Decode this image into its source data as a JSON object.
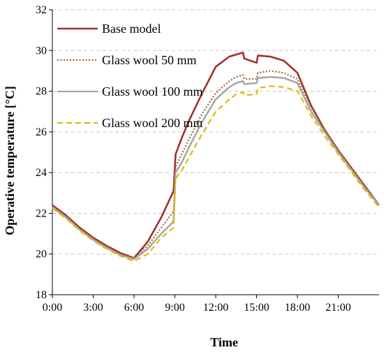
{
  "chart_data": {
    "type": "line",
    "xlabel": "Time",
    "ylabel": "Operative temperature [°C]",
    "xlim": [
      0,
      24
    ],
    "ylim": [
      18,
      32
    ],
    "xticks": [
      0,
      3,
      6,
      9,
      12,
      15,
      18,
      21
    ],
    "xtick_labels": [
      "0:00",
      "3:00",
      "6:00",
      "9:00",
      "12:00",
      "15:00",
      "18:00",
      "21:00"
    ],
    "yticks": [
      18,
      20,
      22,
      24,
      26,
      28,
      30,
      32
    ],
    "ytick_labels": [
      "18",
      "20",
      "22",
      "24",
      "26",
      "28",
      "30",
      "32"
    ],
    "grid": "horizontal dashed",
    "legend": "top-left",
    "series": [
      {
        "name": "Base model",
        "color": "#a0302a",
        "dash": "solid",
        "x": [
          0,
          1,
          2,
          3,
          4,
          5,
          6,
          7,
          8,
          8.9,
          9.05,
          9.5,
          10,
          11,
          12,
          13,
          13.5,
          14,
          14.1,
          15,
          15.1,
          16,
          17,
          18,
          19,
          20,
          21,
          22,
          23,
          24
        ],
        "y": [
          22.4,
          21.9,
          21.3,
          20.8,
          20.4,
          20.05,
          19.8,
          20.6,
          21.8,
          23.1,
          24.9,
          25.7,
          26.5,
          27.9,
          29.2,
          29.7,
          29.8,
          29.9,
          29.6,
          29.4,
          29.75,
          29.7,
          29.5,
          28.9,
          27.3,
          26.1,
          25.1,
          24.2,
          23.3,
          22.4
        ]
      },
      {
        "name": "Glass wool 50 mm",
        "color": "#9b6b34",
        "dash": "dotted",
        "x": [
          0,
          1,
          2,
          3,
          4,
          5,
          6,
          7,
          8,
          8.9,
          9.05,
          9.5,
          10,
          11,
          12,
          13,
          13.5,
          14,
          14.1,
          15,
          15.1,
          16,
          17,
          18,
          19,
          20,
          21,
          22,
          23,
          24
        ],
        "y": [
          22.35,
          21.85,
          21.25,
          20.75,
          20.35,
          20.0,
          19.8,
          20.4,
          21.3,
          22.1,
          24.3,
          24.9,
          25.6,
          26.9,
          27.9,
          28.5,
          28.7,
          28.8,
          28.6,
          28.6,
          28.9,
          29.0,
          28.9,
          28.6,
          27.2,
          26.1,
          25.1,
          24.2,
          23.3,
          22.4
        ]
      },
      {
        "name": "Glass wool 100 mm",
        "color": "#a6a6a6",
        "dash": "solid",
        "x": [
          0,
          1,
          2,
          3,
          4,
          5,
          6,
          7,
          8,
          8.9,
          9.05,
          9.5,
          10,
          11,
          12,
          13,
          13.5,
          14,
          14.1,
          15,
          15.1,
          16,
          17,
          18,
          19,
          20,
          21,
          22,
          23,
          24
        ],
        "y": [
          22.3,
          21.8,
          21.2,
          20.7,
          20.3,
          19.95,
          19.75,
          20.25,
          21.0,
          21.6,
          24.0,
          24.5,
          25.2,
          26.5,
          27.6,
          28.2,
          28.4,
          28.5,
          28.35,
          28.4,
          28.65,
          28.7,
          28.65,
          28.4,
          27.0,
          26.0,
          25.0,
          24.1,
          23.2,
          22.4
        ]
      },
      {
        "name": "Glass wool 200 mm",
        "color": "#e0bb00",
        "dash": "dashed",
        "x": [
          0,
          1,
          2,
          3,
          4,
          5,
          6,
          7,
          8,
          8.9,
          9.05,
          9.5,
          10,
          11,
          12,
          13,
          13.5,
          14,
          14.1,
          15,
          15.1,
          16,
          17,
          18,
          19,
          20,
          21,
          22,
          23,
          24
        ],
        "y": [
          22.25,
          21.75,
          21.15,
          20.65,
          20.25,
          19.9,
          19.65,
          20.0,
          20.8,
          21.3,
          23.7,
          24.1,
          24.7,
          25.9,
          27.0,
          27.6,
          27.85,
          27.95,
          27.8,
          27.85,
          28.15,
          28.25,
          28.2,
          28.0,
          26.8,
          25.8,
          24.9,
          24.0,
          23.1,
          22.3
        ]
      }
    ]
  }
}
